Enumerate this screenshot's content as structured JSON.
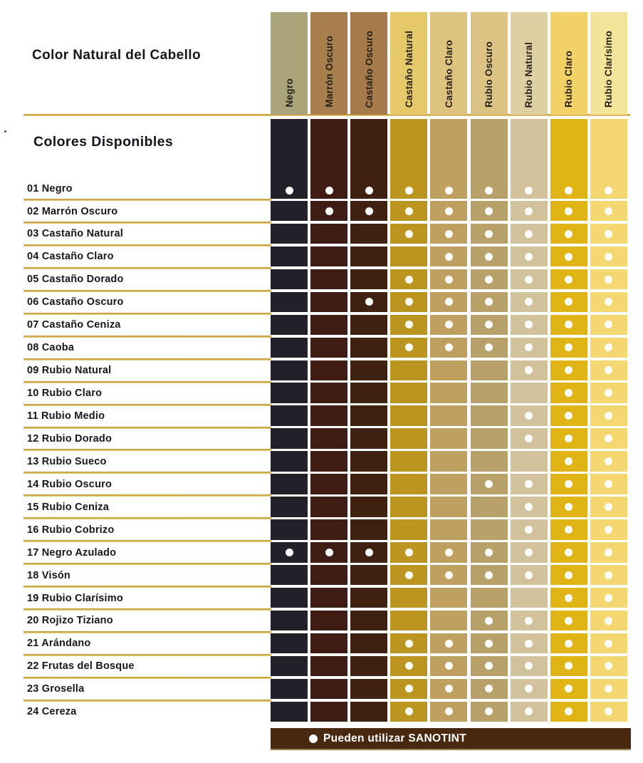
{
  "title": "Color Natural del Cabello",
  "subtitle": "Colores Disponibles",
  "footer": {
    "label": "Pueden utilizar SANOTINT",
    "background": "#48290f",
    "text_color": "#ffffff"
  },
  "colors": {
    "text_dark": "#17161f",
    "gold_line": "#c99f35",
    "dot": "#ffffff"
  },
  "chart_data": {
    "type": "table",
    "title": "Color Natural del Cabello",
    "subtitle": "Colores Disponibles",
    "legend": "Pueden utilizar SANOTINT",
    "columns": [
      {
        "label": "Negro",
        "header_color": "#aba37a",
        "body_color": "#242029"
      },
      {
        "label": "Marrón Oscuro",
        "header_color": "#a97e4d",
        "body_color": "#3f1d15"
      },
      {
        "label": "Castaño Oscuro",
        "header_color": "#a67b49",
        "body_color": "#402011"
      },
      {
        "label": "Castaño Natural",
        "header_color": "#e5c867",
        "body_color": "#bb9520"
      },
      {
        "label": "Castaño Claro",
        "header_color": "#dec37e",
        "body_color": "#c0a061"
      },
      {
        "label": "Rubio Oscuro",
        "header_color": "#dcc383",
        "body_color": "#b7a168"
      },
      {
        "label": "Rubio Natural",
        "header_color": "#ded0a2",
        "body_color": "#d2c29b"
      },
      {
        "label": "Rubio Claro",
        "header_color": "#f2d166",
        "body_color": "#dfb414"
      },
      {
        "label": "Rubio Clarísimo",
        "header_color": "#f4e49a",
        "body_color": "#f4d771"
      }
    ],
    "rows": [
      {
        "label": "01 Negro",
        "dots": [
          1,
          1,
          1,
          1,
          1,
          1,
          1,
          1,
          1
        ]
      },
      {
        "label": "02 Marrón Oscuro",
        "dots": [
          0,
          1,
          1,
          1,
          1,
          1,
          1,
          1,
          1
        ]
      },
      {
        "label": "03 Castaño Natural",
        "dots": [
          0,
          0,
          0,
          1,
          1,
          1,
          1,
          1,
          1
        ]
      },
      {
        "label": "04 Castaño Claro",
        "dots": [
          0,
          0,
          0,
          0,
          1,
          1,
          1,
          1,
          1
        ]
      },
      {
        "label": "05 Castaño Dorado",
        "dots": [
          0,
          0,
          0,
          1,
          1,
          1,
          1,
          1,
          1
        ]
      },
      {
        "label": "06 Castaño Oscuro",
        "dots": [
          0,
          0,
          1,
          1,
          1,
          1,
          1,
          1,
          1
        ]
      },
      {
        "label": "07 Castaño Ceniza",
        "dots": [
          0,
          0,
          0,
          1,
          1,
          1,
          1,
          1,
          1
        ]
      },
      {
        "label": "08 Caoba",
        "dots": [
          0,
          0,
          0,
          1,
          1,
          1,
          1,
          1,
          1
        ]
      },
      {
        "label": "09 Rubio Natural",
        "dots": [
          0,
          0,
          0,
          0,
          0,
          0,
          1,
          1,
          1
        ]
      },
      {
        "label": "10 Rubio Claro",
        "dots": [
          0,
          0,
          0,
          0,
          0,
          0,
          0,
          1,
          1
        ]
      },
      {
        "label": "11 Rubio Medio",
        "dots": [
          0,
          0,
          0,
          0,
          0,
          0,
          1,
          1,
          1
        ]
      },
      {
        "label": "12 Rubio Dorado",
        "dots": [
          0,
          0,
          0,
          0,
          0,
          0,
          1,
          1,
          1
        ]
      },
      {
        "label": "13 Rubio Sueco",
        "dots": [
          0,
          0,
          0,
          0,
          0,
          0,
          0,
          1,
          1
        ]
      },
      {
        "label": "14 Rubio Oscuro",
        "dots": [
          0,
          0,
          0,
          0,
          0,
          1,
          1,
          1,
          1
        ]
      },
      {
        "label": "15 Rubio Ceniza",
        "dots": [
          0,
          0,
          0,
          0,
          0,
          0,
          1,
          1,
          1
        ]
      },
      {
        "label": "16 Rubio Cobrizo",
        "dots": [
          0,
          0,
          0,
          0,
          0,
          0,
          1,
          1,
          1
        ]
      },
      {
        "label": "17 Negro Azulado",
        "dots": [
          1,
          1,
          1,
          1,
          1,
          1,
          1,
          1,
          1
        ]
      },
      {
        "label": "18 Visón",
        "dots": [
          0,
          0,
          0,
          1,
          1,
          1,
          1,
          1,
          1
        ]
      },
      {
        "label": "19 Rubio Clarísimo",
        "dots": [
          0,
          0,
          0,
          0,
          0,
          0,
          0,
          1,
          1
        ]
      },
      {
        "label": "20 Rojizo Tiziano",
        "dots": [
          0,
          0,
          0,
          0,
          0,
          1,
          1,
          1,
          1
        ]
      },
      {
        "label": "21 Arándano",
        "dots": [
          0,
          0,
          0,
          1,
          1,
          1,
          1,
          1,
          1
        ]
      },
      {
        "label": "22 Frutas del Bosque",
        "dots": [
          0,
          0,
          0,
          1,
          1,
          1,
          1,
          1,
          1
        ]
      },
      {
        "label": "23 Grosella",
        "dots": [
          0,
          0,
          0,
          1,
          1,
          1,
          1,
          1,
          1
        ]
      },
      {
        "label": "24 Cereza",
        "dots": [
          0,
          0,
          0,
          1,
          1,
          1,
          1,
          1,
          1
        ]
      }
    ]
  }
}
